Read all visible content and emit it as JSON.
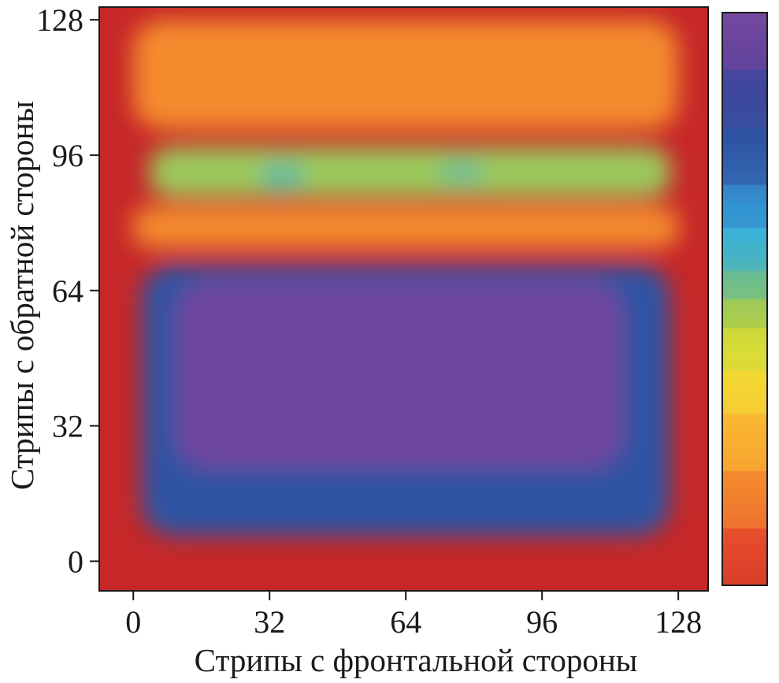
{
  "chart_data": {
    "type": "heatmap",
    "title": "",
    "xlabel": "Стрипы с фронтальной стороны",
    "ylabel": "Стрипы с обратной стороны",
    "xlim": [
      -8,
      135
    ],
    "ylim": [
      -7,
      131
    ],
    "x_ticks": [
      0,
      32,
      64,
      96,
      128
    ],
    "y_ticks": [
      0,
      32,
      64,
      96,
      128
    ],
    "x_tick_labels": [
      "0",
      "32",
      "64",
      "96",
      "128"
    ],
    "y_tick_labels": [
      "0",
      "32",
      "64",
      "96",
      "128"
    ],
    "value_scale": "relative intensity, 0 = red (low) to 1 = purple (high)",
    "regions": [
      {
        "name": "central-high-band",
        "x_range": [
          2,
          126
        ],
        "y_range": [
          6,
          70
        ],
        "level": 0.75
      },
      {
        "name": "peak-core",
        "x_range": [
          10,
          115
        ],
        "y_range": [
          22,
          66
        ],
        "level": 0.93
      },
      {
        "name": "peak-max",
        "x_range": [
          58,
          78
        ],
        "y_range": [
          52,
          58
        ],
        "level": 0.99
      },
      {
        "name": "upper-band",
        "x_range": [
          4,
          126
        ],
        "y_range": [
          86,
          98
        ],
        "level": 0.47
      },
      {
        "name": "upper-band-spot-left",
        "x_range": [
          30,
          40
        ],
        "y_range": [
          88,
          94
        ],
        "level": 0.53
      },
      {
        "name": "upper-band-spot-right",
        "x_range": [
          72,
          82
        ],
        "y_range": [
          90,
          94
        ],
        "level": 0.52
      },
      {
        "name": "gap-band",
        "x_range": [
          0,
          128
        ],
        "y_range": [
          74,
          84
        ],
        "level": 0.2
      },
      {
        "name": "top-edge-region",
        "x_range": [
          0,
          128
        ],
        "y_range": [
          102,
          128
        ],
        "level": 0.18
      }
    ],
    "colorbar": {
      "orientation": "vertical",
      "low_color": "#c62828",
      "high_color": "#6a3d9a",
      "labels": []
    },
    "grid": false,
    "legend": "none"
  }
}
